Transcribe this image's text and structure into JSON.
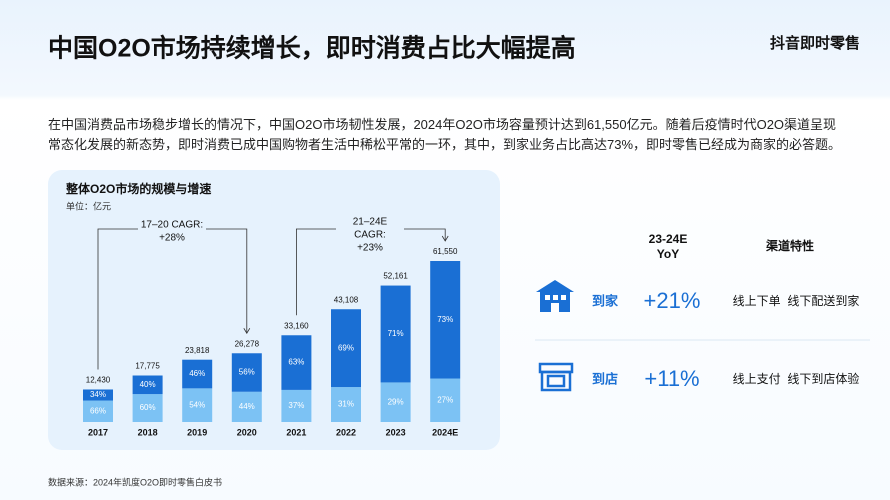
{
  "header": {
    "title": "中国O2O市场持续增长，即时消费占比大幅提高",
    "brand": "抖音即时零售"
  },
  "intro": "在中国消费品市场稳步增长的情况下，中国O2O市场韧性发展，2024年O2O市场容量预计达到61,550亿元。随着后疫情时代O2O渠道呈现常态化发展的新态势，即时消费已成中国购物者生活中稀松平常的一环，其中，到家业务占比高达73%，即时零售已经成为商家的必答题。",
  "chart_data": {
    "type": "bar",
    "title": "整体O2O市场的规模与增速",
    "unit": "单位：亿元",
    "categories": [
      "2017",
      "2018",
      "2019",
      "2020",
      "2021",
      "2022",
      "2023",
      "2024E"
    ],
    "values": [
      12430,
      17775,
      23818,
      26278,
      33160,
      43108,
      52161,
      61550
    ],
    "value_labels": [
      "12,430",
      "17,775",
      "23,818",
      "26,278",
      "33,160",
      "43,108",
      "52,161",
      "61,550"
    ],
    "series": [
      {
        "color": "#7cc2f4",
        "values": [
          66,
          60,
          54,
          44,
          37,
          31,
          29,
          27
        ],
        "value_labels": [
          "66%",
          "60%",
          "54%",
          "44%",
          "37%",
          "31%",
          "29%",
          "27%"
        ]
      },
      {
        "color": "#1a6fd4",
        "values": [
          34,
          40,
          46,
          56,
          63,
          69,
          71,
          73
        ],
        "value_labels": [
          "34%",
          "40%",
          "46%",
          "56%",
          "63%",
          "69%",
          "71%",
          "73%"
        ]
      }
    ],
    "annotations": [
      [
        "17–20 CAGR:",
        "+28%"
      ],
      [
        "21–24E",
        "CAGR:",
        "+23%"
      ]
    ]
  },
  "channels": {
    "headers": [
      [
        "23-24E",
        "YoY"
      ],
      "渠道特性"
    ],
    "rows": [
      {
        "name": "到家",
        "yoy": "+21%",
        "feature": "线上下单  线下配送到家"
      },
      {
        "name": "到店",
        "yoy": "+11%",
        "feature": "线上支付  线下到店体验"
      }
    ]
  },
  "source": "数据来源：2024年凯度O2O即时零售白皮书"
}
